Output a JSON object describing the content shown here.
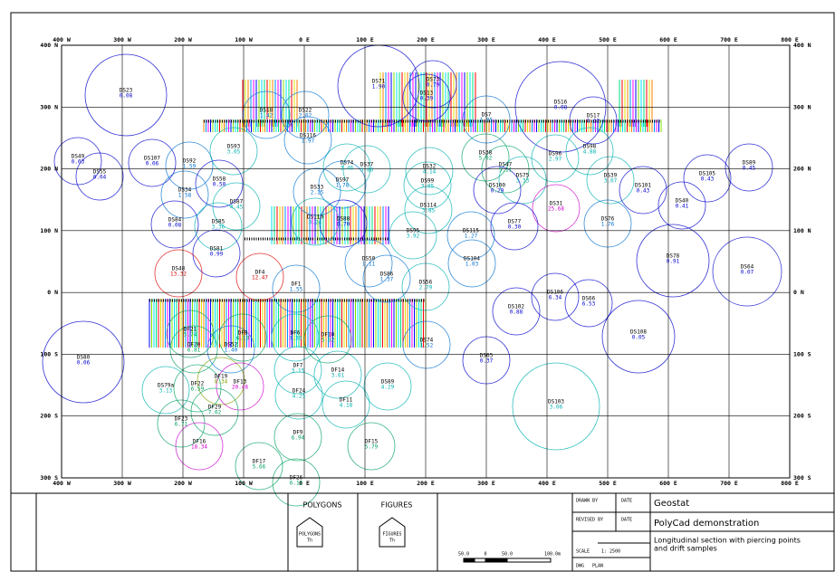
{
  "drawing": {
    "x_labels": [
      "400 W",
      "300 W",
      "200 W",
      "100 W",
      "0 E",
      "100 E",
      "200 E",
      "300 E",
      "400 E",
      "500 E",
      "600 E",
      "700 E",
      "800 E"
    ],
    "y_labels": [
      "400 N",
      "300 N",
      "200 N",
      "100 N",
      "0 N",
      "100 S",
      "200 S",
      "300 S"
    ],
    "samples": [
      {
        "name": "DS23",
        "value": "0.08",
        "color": "#0000cc"
      },
      {
        "name": "DS71",
        "value": "1.90",
        "color": "#0000cc"
      },
      {
        "name": "DS73",
        "value": "0.79",
        "color": "#0000cc"
      },
      {
        "name": "DS13",
        "value": "0.39",
        "color": "#0000cc"
      },
      {
        "name": "DS16",
        "value": "0.08",
        "color": "#0000cc"
      },
      {
        "name": "DS18",
        "value": "1.42",
        "color": "#0070d0"
      },
      {
        "name": "DS22",
        "value": "2.02",
        "color": "#0070d0"
      },
      {
        "name": "DS7",
        "value": "1.85",
        "color": "#0070d0"
      },
      {
        "name": "DS17",
        "value": "0.12",
        "color": "#0000cc"
      },
      {
        "name": "DS49",
        "value": "0.03",
        "color": "#0000cc"
      },
      {
        "name": "DS107",
        "value": "0.06",
        "color": "#0000cc"
      },
      {
        "name": "DS55",
        "value": "0.04",
        "color": "#0000cc"
      },
      {
        "name": "DS92",
        "value": "1.59",
        "color": "#0070d0"
      },
      {
        "name": "DS93",
        "value": "3.05",
        "color": "#00b0b0"
      },
      {
        "name": "DS116",
        "value": "1.97",
        "color": "#0070d0"
      },
      {
        "name": "DS74",
        "value": "3.46",
        "color": "#00b0b0"
      },
      {
        "name": "DS37",
        "value": "3.86",
        "color": "#00b0b0"
      },
      {
        "name": "DS32",
        "value": "4.14",
        "color": "#00b0b0"
      },
      {
        "name": "DS38",
        "value": "5.02",
        "color": "#00a060"
      },
      {
        "name": "DS47",
        "value": "5.11",
        "color": "#00a060"
      },
      {
        "name": "DS75",
        "value": "3.33",
        "color": "#00b0b0"
      },
      {
        "name": "DS96",
        "value": "2.97",
        "color": "#00b0b0"
      },
      {
        "name": "DS98",
        "value": "4.88",
        "color": "#00b0b0"
      },
      {
        "name": "DS39",
        "value": "3.07",
        "color": "#00b0b0"
      },
      {
        "name": "DS101",
        "value": "0.43",
        "color": "#0000cc"
      },
      {
        "name": "DS105",
        "value": "0.43",
        "color": "#0000cc"
      },
      {
        "name": "DS89",
        "value": "0.45",
        "color": "#0000cc"
      },
      {
        "name": "DS99",
        "value": "3.05",
        "color": "#00b0b0"
      },
      {
        "name": "DS100",
        "value": "0.29",
        "color": "#0000cc"
      },
      {
        "name": "DS34",
        "value": "1.58",
        "color": "#0070d0"
      },
      {
        "name": "DS58",
        "value": "0.50",
        "color": "#0000cc"
      },
      {
        "name": "DS33",
        "value": "2.15",
        "color": "#0070d0"
      },
      {
        "name": "DS97",
        "value": "1.78",
        "color": "#0070d0"
      },
      {
        "name": "DS87",
        "value": "4.45",
        "color": "#00b0b0"
      },
      {
        "name": "DS110",
        "value": "3.24",
        "color": "#00b0b0"
      },
      {
        "name": "DS88",
        "value": "0.70",
        "color": "#0000cc"
      },
      {
        "name": "DS114",
        "value": "3.85",
        "color": "#00b0b0"
      },
      {
        "name": "DS31",
        "value": "25.68",
        "color": "#cc00cc"
      },
      {
        "name": "DS40",
        "value": "0.41",
        "color": "#0000cc"
      },
      {
        "name": "DS84",
        "value": "0.08",
        "color": "#0000cc"
      },
      {
        "name": "DS85",
        "value": "3.36",
        "color": "#00b0b0"
      },
      {
        "name": "DS77",
        "value": "0.30",
        "color": "#0000cc"
      },
      {
        "name": "DS76",
        "value": "1.76",
        "color": "#0070d0"
      },
      {
        "name": "DS95",
        "value": "3.92",
        "color": "#00b0b0"
      },
      {
        "name": "DS115",
        "value": "1.27",
        "color": "#0070d0"
      },
      {
        "name": "DS81",
        "value": "0.99",
        "color": "#0000cc"
      },
      {
        "name": "DS48",
        "value": "13.32",
        "color": "#dd0000"
      },
      {
        "name": "DF4",
        "value": "12.47",
        "color": "#dd0000"
      },
      {
        "name": "DS78",
        "value": "0.91",
        "color": "#0000cc"
      },
      {
        "name": "DS64",
        "value": "0.07",
        "color": "#0000cc"
      },
      {
        "name": "DS104",
        "value": "1.03",
        "color": "#0070d0"
      },
      {
        "name": "DS50",
        "value": "1.11",
        "color": "#0070d0"
      },
      {
        "name": "DS86",
        "value": "1.37",
        "color": "#0070d0"
      },
      {
        "name": "DS56",
        "value": "2.79",
        "color": "#00b0b0"
      },
      {
        "name": "DF1",
        "value": "1.55",
        "color": "#0070d0"
      },
      {
        "name": "DS106",
        "value": "6.34",
        "color": "#0000cc"
      },
      {
        "name": "DS66",
        "value": "6.53",
        "color": "#0000cc"
      },
      {
        "name": "DS102",
        "value": "0.88",
        "color": "#0000cc"
      },
      {
        "name": "DF21",
        "value": "5.74",
        "color": "#00a060"
      },
      {
        "name": "DF8",
        "value": "6.19",
        "color": "#00a060"
      },
      {
        "name": "DF6",
        "value": "3.30",
        "color": "#00b0b0"
      },
      {
        "name": "DF10",
        "value": "5.92",
        "color": "#00a060"
      },
      {
        "name": "DS108",
        "value": "0.05",
        "color": "#0000cc"
      },
      {
        "name": "DS74",
        "value": "1.52",
        "color": "#0070d0"
      },
      {
        "name": "DF20",
        "value": "6.81",
        "color": "#00a060"
      },
      {
        "name": "DS52",
        "value": "1.40",
        "color": "#0070d0"
      },
      {
        "name": "DS65",
        "value": "0.37",
        "color": "#0000cc"
      },
      {
        "name": "DS80",
        "value": "0.06",
        "color": "#0000cc"
      },
      {
        "name": "DF7",
        "value": "3.15",
        "color": "#00b0b0"
      },
      {
        "name": "DF14",
        "value": "3.61",
        "color": "#00b0b0"
      },
      {
        "name": "DF19",
        "value": "8.34",
        "color": "#80a000"
      },
      {
        "name": "DF13",
        "value": "20.48",
        "color": "#cc00cc"
      },
      {
        "name": "DS89",
        "value": "4.29",
        "color": "#00b0b0"
      },
      {
        "name": "DS79a",
        "value": "3.13",
        "color": "#00b0b0"
      },
      {
        "name": "DF22",
        "value": "6.59",
        "color": "#00a060"
      },
      {
        "name": "DF24",
        "value": "4.25",
        "color": "#00b0b0"
      },
      {
        "name": "DF11",
        "value": "4.18",
        "color": "#00b0b0"
      },
      {
        "name": "DS103",
        "value": "3.06",
        "color": "#00b0b0"
      },
      {
        "name": "DF29",
        "value": "7.02",
        "color": "#00a060"
      },
      {
        "name": "DF23",
        "value": "6.71",
        "color": "#00a060"
      },
      {
        "name": "DF9",
        "value": "6.94",
        "color": "#00a060"
      },
      {
        "name": "DF16",
        "value": "18.34",
        "color": "#cc00cc"
      },
      {
        "name": "DF15",
        "value": "5.79",
        "color": "#00a060"
      },
      {
        "name": "DF17",
        "value": "5.66",
        "color": "#00a060"
      },
      {
        "name": "DF26",
        "value": "6.12",
        "color": "#00a060"
      }
    ]
  },
  "title_block": {
    "polygons": "POLYGONS",
    "figures": "FIGURES",
    "polygons_icon": "POLYGONS",
    "polygons_icon_sub": "Th",
    "figures_icon": "FIGURES",
    "figures_icon_sub": "Th",
    "scale_bar": [
      "50.0",
      "0",
      "50.0",
      "100.0m"
    ],
    "drawn_by": "DRAWN BY",
    "date": "DATE",
    "revised_by": "REVISED BY",
    "date2": "DATE",
    "scale_label": "SCALE",
    "scale_value": "1: 2500",
    "dwg": "DWG",
    "dwg_value": "PLAN",
    "company": "Geostat",
    "project": "PolyCad demonstration",
    "description": [
      "Longitudinal section with piercing points",
      "and drift samples"
    ]
  }
}
